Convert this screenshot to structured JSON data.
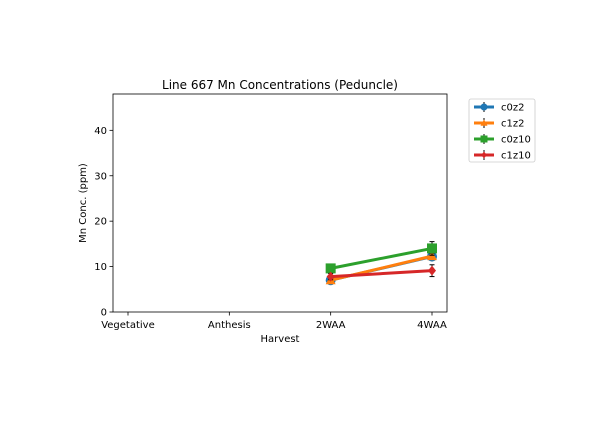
{
  "chart_data": {
    "type": "line",
    "title": "Line 667 Mn Concentrations (Peduncle)",
    "xlabel": "Harvest",
    "ylabel": "Mn Conc. (ppm)",
    "categories": [
      "Vegetative",
      "Anthesis",
      "2WAA",
      "4WAA"
    ],
    "ylim": [
      0,
      48
    ],
    "yticks": [
      0,
      10,
      20,
      30,
      40
    ],
    "legend_position": "outside-upper-right",
    "grid": false,
    "series": [
      {
        "name": "c0z2",
        "color": "#1f77b4",
        "marker": "circle",
        "values": [
          null,
          null,
          7.0,
          12.2
        ],
        "errors": [
          null,
          null,
          0.4,
          0.6
        ]
      },
      {
        "name": "c1z2",
        "color": "#ff7f0e",
        "marker": "triangle",
        "values": [
          null,
          null,
          7.0,
          12.3
        ],
        "errors": [
          null,
          null,
          0.4,
          0.6
        ]
      },
      {
        "name": "c0z10",
        "color": "#2ca02c",
        "marker": "square",
        "values": [
          null,
          null,
          9.6,
          14.0
        ],
        "errors": [
          null,
          null,
          0.5,
          1.5
        ]
      },
      {
        "name": "c1z10",
        "color": "#d62728",
        "marker": "diamond",
        "values": [
          null,
          null,
          7.8,
          9.1
        ],
        "errors": [
          null,
          null,
          0.7,
          1.3
        ]
      }
    ]
  }
}
